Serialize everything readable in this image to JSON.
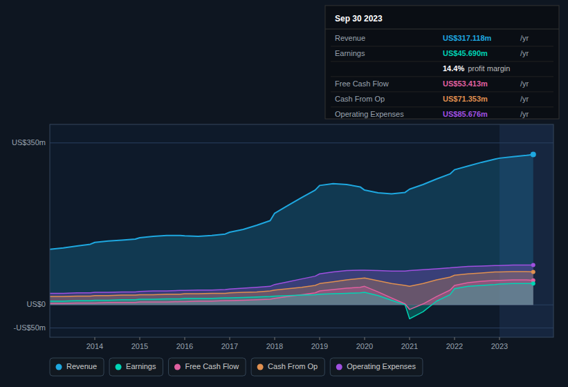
{
  "chart_data": {
    "type": "area",
    "x": [
      2013.0,
      2013.3,
      2013.6,
      2013.9,
      2014.0,
      2014.3,
      2014.6,
      2014.9,
      2015.0,
      2015.3,
      2015.6,
      2015.9,
      2016.0,
      2016.3,
      2016.6,
      2016.9,
      2017.0,
      2017.3,
      2017.6,
      2017.9,
      2018.0,
      2018.3,
      2018.6,
      2018.9,
      2019.0,
      2019.3,
      2019.6,
      2019.9,
      2020.0,
      2020.3,
      2020.6,
      2020.9,
      2021.0,
      2021.3,
      2021.6,
      2021.9,
      2022.0,
      2022.3,
      2022.6,
      2022.9,
      2023.0,
      2023.3,
      2023.6,
      2023.75
    ],
    "series": [
      {
        "name": "Revenue",
        "color": "#1ea8e0",
        "values": [
          120,
          123,
          127,
          131,
          135,
          138,
          140,
          142,
          145,
          148,
          150,
          150,
          149,
          148,
          150,
          153,
          157,
          163,
          172,
          182,
          198,
          215,
          232,
          248,
          258,
          262,
          260,
          255,
          248,
          242,
          240,
          243,
          250,
          260,
          272,
          283,
          292,
          300,
          308,
          315,
          317,
          320,
          323,
          325
        ]
      },
      {
        "name": "Earnings",
        "color": "#00d4b4",
        "values": [
          8,
          8,
          9,
          9,
          10,
          10,
          11,
          11,
          12,
          12,
          13,
          13,
          14,
          14,
          14,
          15,
          15,
          16,
          17,
          18,
          19,
          20,
          21,
          22,
          23,
          24,
          25,
          26,
          27,
          20,
          10,
          0,
          -30,
          -15,
          8,
          22,
          35,
          40,
          42,
          44,
          45,
          46,
          46,
          46
        ]
      },
      {
        "name": "Free Cash Flow",
        "color": "#e060a0",
        "values": [
          3,
          3,
          4,
          4,
          4,
          5,
          5,
          5,
          6,
          6,
          6,
          7,
          7,
          8,
          8,
          9,
          9,
          10,
          11,
          12,
          14,
          18,
          22,
          26,
          30,
          33,
          36,
          38,
          40,
          28,
          15,
          2,
          -10,
          2,
          18,
          32,
          42,
          48,
          51,
          53,
          53,
          54,
          54,
          53
        ]
      },
      {
        "name": "Cash From Op",
        "color": "#e09050",
        "values": [
          18,
          18,
          19,
          19,
          20,
          20,
          21,
          21,
          22,
          22,
          23,
          23,
          24,
          24,
          25,
          25,
          26,
          27,
          28,
          30,
          32,
          35,
          38,
          42,
          46,
          50,
          54,
          57,
          58,
          52,
          46,
          42,
          40,
          46,
          54,
          60,
          64,
          67,
          69,
          71,
          71,
          72,
          72,
          71
        ]
      },
      {
        "name": "Operating Expenses",
        "color": "#a050e0",
        "values": [
          25,
          25,
          26,
          26,
          27,
          27,
          28,
          28,
          29,
          30,
          30,
          31,
          31,
          32,
          32,
          33,
          34,
          36,
          38,
          40,
          44,
          50,
          56,
          62,
          67,
          71,
          74,
          75,
          75,
          74,
          73,
          73,
          74,
          76,
          78,
          80,
          81,
          83,
          84,
          85,
          85,
          86,
          86,
          86
        ]
      }
    ],
    "xlim": [
      2013.0,
      2024.2
    ],
    "ylim": [
      -70,
      390
    ],
    "xticks": [
      2014,
      2015,
      2016,
      2017,
      2018,
      2019,
      2020,
      2021,
      2022,
      2023
    ],
    "yticks": [
      {
        "value": 350,
        "label": "US$350m"
      },
      {
        "value": 0,
        "label": "US$0"
      },
      {
        "value": -50,
        "label": "-US$50m"
      }
    ],
    "grid": true,
    "legend": "bottom",
    "annotations": [
      {
        "x": 2023.0
      },
      {
        "title": "Sep 30 2023",
        "rows": [
          {
            "label": "Revenue",
            "text": "US$317.118m",
            "unit": "/yr",
            "color": "#1ea8e0"
          },
          {
            "label": "Earnings",
            "text": "US$45.690m",
            "unit": "/yr",
            "color": "#00d4b4"
          },
          {
            "text": "14.4%",
            "unit": "profit margin",
            "color": "#ffffff"
          },
          {
            "label": "Free Cash Flow",
            "text": "US$53.413m",
            "unit": "/yr",
            "color": "#e060a0"
          },
          {
            "label": "Cash From Op",
            "text": "US$71.353m",
            "unit": "/yr",
            "color": "#e09050"
          },
          {
            "label": "Operating Expenses",
            "text": "US$85.676m",
            "unit": "/yr",
            "color": "#a050e0"
          }
        ]
      }
    ]
  }
}
